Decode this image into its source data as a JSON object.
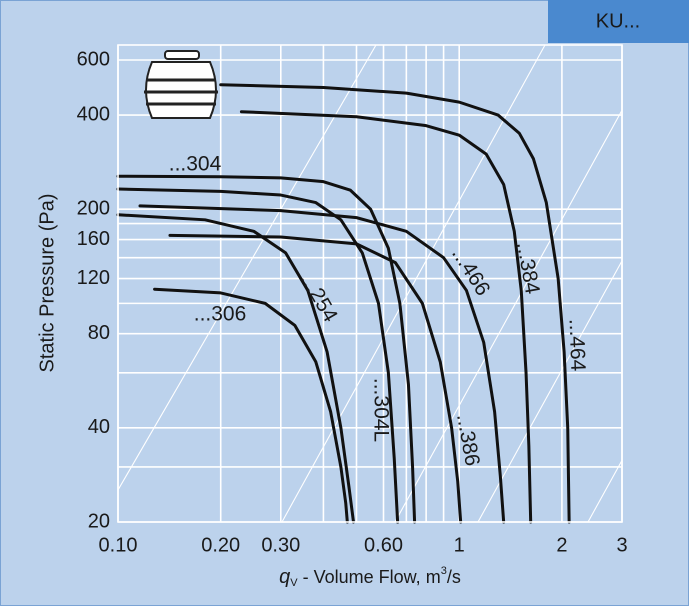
{
  "badge": "KU...",
  "chart_data": {
    "type": "line",
    "xlabel": {
      "symbol": "q",
      "subscript": "V",
      "text": " - Volume Flow, m",
      "superscript": "3",
      "suffix": "/s"
    },
    "ylabel": "Static Pressure (Pa)",
    "xscale": "log",
    "yscale": "log",
    "xlim": [
      0.1,
      3
    ],
    "ylim": [
      20,
      670
    ],
    "xticks": [
      {
        "value": 0.1,
        "label": "0.10"
      },
      {
        "value": 0.2,
        "label": "0.20"
      },
      {
        "value": 0.3,
        "label": "0.30"
      },
      {
        "value": 0.6,
        "label": "0.60"
      },
      1,
      2,
      3
    ],
    "yticks": [
      20,
      40,
      80,
      120,
      160,
      200,
      400,
      600
    ],
    "x_minor_grid": [
      0.4,
      0.5,
      0.7,
      0.8,
      0.9
    ],
    "y_minor_grid": [
      30,
      60,
      100,
      140,
      180
    ],
    "grid": true,
    "series": [
      {
        "name": "...464",
        "color": "#111111",
        "x": [
          0.2,
          0.4,
          0.7,
          1.0,
          1.3,
          1.5,
          1.65,
          1.8,
          1.95,
          2.03,
          2.08,
          2.1
        ],
        "values": [
          500,
          490,
          470,
          440,
          400,
          350,
          290,
          210,
          120,
          70,
          40,
          20
        ]
      },
      {
        "name": "...384",
        "color": "#111111",
        "x": [
          0.23,
          0.5,
          0.8,
          1.0,
          1.2,
          1.35,
          1.45,
          1.52,
          1.57,
          1.6,
          1.62
        ],
        "values": [
          410,
          395,
          370,
          345,
          300,
          240,
          170,
          110,
          60,
          35,
          20
        ]
      },
      {
        "name": "...304",
        "color": "#111111",
        "x": [
          0.1,
          0.2,
          0.3,
          0.4,
          0.48,
          0.55,
          0.62,
          0.67,
          0.71,
          0.73,
          0.74
        ],
        "values": [
          255,
          254,
          252,
          245,
          230,
          200,
          150,
          100,
          55,
          30,
          20
        ]
      },
      {
        "name": "...304L",
        "color": "#111111",
        "x": [
          0.1,
          0.2,
          0.3,
          0.38,
          0.45,
          0.52,
          0.58,
          0.62,
          0.645,
          0.66
        ],
        "values": [
          232,
          228,
          222,
          210,
          185,
          145,
          100,
          60,
          32,
          20
        ]
      },
      {
        "name": "...466",
        "color": "#111111",
        "x": [
          0.116,
          0.3,
          0.5,
          0.7,
          0.9,
          1.05,
          1.18,
          1.27,
          1.32,
          1.35
        ],
        "values": [
          205,
          198,
          188,
          170,
          140,
          110,
          75,
          45,
          28,
          20
        ]
      },
      {
        "name": "...254",
        "color": "#111111",
        "x": [
          0.1,
          0.18,
          0.25,
          0.31,
          0.36,
          0.41,
          0.45,
          0.475,
          0.49
        ],
        "values": [
          192,
          185,
          170,
          145,
          110,
          70,
          40,
          26,
          20
        ]
      },
      {
        "name": "...386",
        "color": "#111111",
        "x": [
          0.142,
          0.3,
          0.5,
          0.65,
          0.78,
          0.88,
          0.95,
          0.99,
          1.01
        ],
        "values": [
          165,
          163,
          155,
          135,
          100,
          65,
          40,
          27,
          20
        ]
      },
      {
        "name": "...306",
        "color": "#111111",
        "x": [
          0.128,
          0.2,
          0.27,
          0.33,
          0.38,
          0.42,
          0.45,
          0.465,
          0.47
        ],
        "values": [
          111,
          108,
          100,
          85,
          65,
          45,
          30,
          23,
          20
        ]
      }
    ]
  }
}
